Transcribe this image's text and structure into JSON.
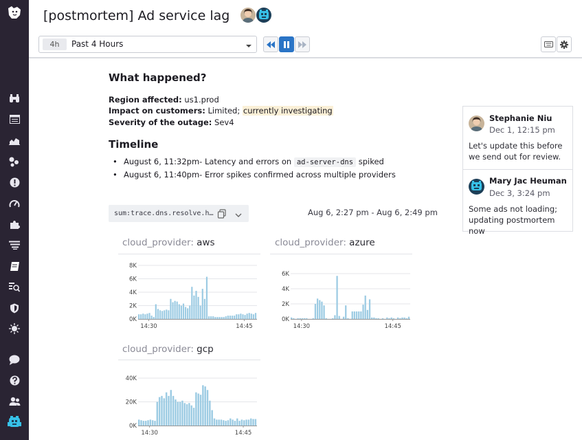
{
  "header": {
    "title": "[postmortem] Ad service lag",
    "time_badge": "4h",
    "time_label": "Past 4 Hours"
  },
  "sidebar": {
    "icons": [
      "dog-logo-icon",
      "binoculars-icon",
      "dashboard-icon",
      "chart-icon",
      "infrastructure-icon",
      "alert-icon",
      "gauge-icon",
      "puzzle-icon",
      "logs-icon",
      "notebook-icon",
      "search-list-icon",
      "shield-icon",
      "bug-icon",
      "chat-icon",
      "help-icon",
      "team-icon",
      "user-avatar-icon"
    ]
  },
  "main": {
    "what_happened": {
      "heading": "What happened?",
      "region_label": "Region affected:",
      "region_value": "us1.prod",
      "impact_label": "Impact on customers:",
      "impact_value": "Limited;",
      "impact_highlight": "currently investigating",
      "severity_label": "Severity of the outage:",
      "severity_value": "Sev4"
    },
    "timeline": {
      "heading": "Timeline",
      "item1_prefix": "August 6, 11:32pm- Latency and errors on",
      "item1_code": "ad-server-dns",
      "item1_suffix": "spiked",
      "item2": "August 6, 11:40pm- Error spikes confirmed across multiple providers"
    },
    "query": "sum:trace.dns.resolve.h…",
    "range": "Aug 6, 2:27 pm - Aug 6, 2:49 pm"
  },
  "comments": [
    {
      "name": "Stephanie Niu",
      "date": "Dec 1, 12:15 pm",
      "text": "Let's update this before we send out for review."
    },
    {
      "name": "Mary Jac Heuman",
      "date": "Dec 3, 3:24 pm",
      "text": "Some ads not loading; updating postmortem now"
    }
  ],
  "colors": {
    "bar": "#9ccbe3",
    "accent": "#2a74c6",
    "sidebar": "#2a2433",
    "highlight": "#fbf0d7"
  },
  "chart_data": [
    {
      "type": "bar",
      "title_key": "cloud_provider:",
      "title_value": "aws",
      "y_ticks": [
        "0K",
        "2K",
        "4K",
        "6K",
        "8K"
      ],
      "ylim": [
        0,
        8000
      ],
      "x_ticks": [
        {
          "label": "14:30",
          "at": 5
        },
        {
          "label": "14:45",
          "at": 50
        }
      ],
      "values": [
        700,
        700,
        800,
        700,
        800,
        900,
        500,
        300,
        2200,
        1500,
        1300,
        1200,
        1300,
        1400,
        1300,
        3000,
        2500,
        2700,
        2600,
        2200,
        2000,
        2300,
        1800,
        1600,
        2000,
        4800,
        3500,
        4200,
        3300,
        2000,
        4500,
        3000,
        6300,
        400,
        400,
        400,
        300,
        300,
        300,
        300,
        300,
        400,
        500,
        500,
        500,
        500,
        700,
        700,
        800,
        700,
        600,
        800,
        900,
        800,
        700,
        900
      ]
    },
    {
      "type": "bar",
      "title_key": "cloud_provider:",
      "title_value": "azure",
      "y_ticks": [
        "0K",
        "2K",
        "4K",
        "6K"
      ],
      "ylim": [
        0,
        6000
      ],
      "x_ticks": [
        {
          "label": "14:30",
          "at": 5
        },
        {
          "label": "14:45",
          "at": 47
        }
      ],
      "values": [
        200,
        100,
        0,
        100,
        100,
        100,
        100,
        100,
        0,
        0,
        100,
        2000,
        2700,
        2500,
        2300,
        1800,
        100,
        0,
        0,
        100,
        500,
        5700,
        400,
        0,
        300,
        1800,
        100,
        0,
        1000,
        1000,
        1000,
        1000,
        1000,
        1900,
        3100,
        1200,
        2600,
        200,
        200,
        100,
        100,
        0,
        100,
        0,
        200,
        100,
        200,
        100,
        0,
        200,
        100,
        200,
        200,
        100,
        300
      ]
    },
    {
      "type": "bar",
      "title_key": "cloud_provider:",
      "title_value": "gcp",
      "y_ticks": [
        "0K",
        "20K",
        "40K"
      ],
      "ylim": [
        0,
        40000
      ],
      "x_ticks": [
        {
          "label": "14:30",
          "at": 5
        },
        {
          "label": "14:45",
          "at": 46
        }
      ],
      "values": [
        5000,
        4500,
        4000,
        4000,
        4500,
        5000,
        4500,
        4000,
        20000,
        24000,
        25000,
        23000,
        28000,
        25000,
        30000,
        25000,
        22000,
        20000,
        20000,
        21000,
        19000,
        18000,
        19000,
        17000,
        15000,
        28000,
        27000,
        26000,
        34000,
        33000,
        30000,
        21000,
        13000,
        6000,
        5000,
        5000,
        5000,
        4500,
        4000,
        4500,
        6000,
        5000,
        4000,
        6000,
        4000,
        5000,
        4500,
        5000,
        5000,
        6000,
        5500,
        5500
      ]
    }
  ]
}
